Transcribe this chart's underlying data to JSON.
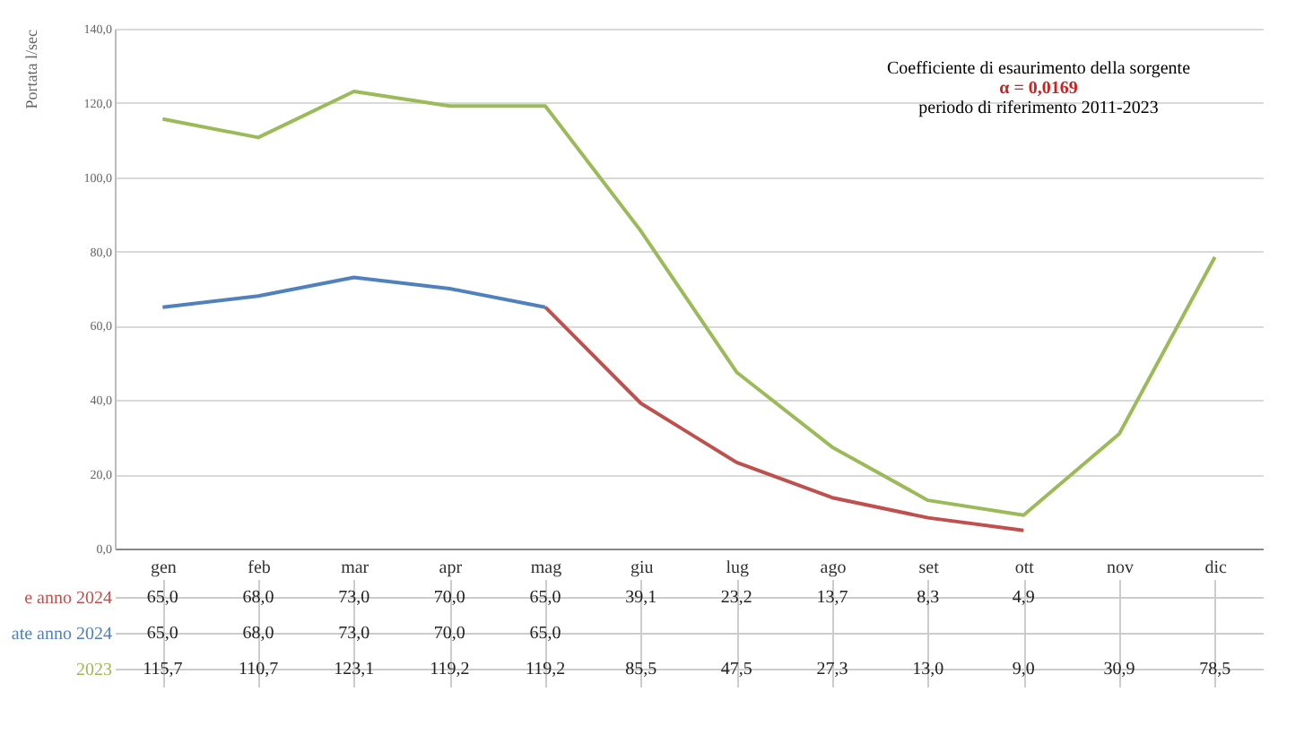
{
  "chart_data": {
    "type": "line",
    "ylabel": "Portata l/sec",
    "categories": [
      "gen",
      "feb",
      "mar",
      "apr",
      "mag",
      "giu",
      "lug",
      "ago",
      "set",
      "ott",
      "nov",
      "dic"
    ],
    "series": [
      {
        "name": "e anno 2024",
        "color": "#c0504d",
        "values": [
          null,
          null,
          null,
          null,
          65.0,
          39.1,
          23.2,
          13.7,
          8.3,
          4.9,
          null,
          null
        ],
        "value_labels": [
          "65,0",
          "68,0",
          "73,0",
          "70,0",
          "65,0",
          "39,1",
          "23,2",
          "13,7",
          "8,3",
          "4,9",
          null,
          null
        ]
      },
      {
        "name": "ate anno 2024",
        "color": "#4f81bd",
        "values": [
          65.0,
          68.0,
          73.0,
          70.0,
          65.0,
          null,
          null,
          null,
          null,
          null,
          null,
          null
        ],
        "value_labels": [
          "65,0",
          "68,0",
          "73,0",
          "70,0",
          "65,0",
          null,
          null,
          null,
          null,
          null,
          null,
          null
        ]
      },
      {
        "name": "2023",
        "color": "#9bbb59",
        "values": [
          115.7,
          110.7,
          123.1,
          119.2,
          119.2,
          85.5,
          47.5,
          27.3,
          13.0,
          9.0,
          30.9,
          78.5
        ],
        "value_labels": [
          "115,7",
          "110,7",
          "123,1",
          "119,2",
          "119,2",
          "85,5",
          "47,5",
          "27,3",
          "13,0",
          "9,0",
          "30,9",
          "78,5"
        ]
      }
    ],
    "ylim": [
      0,
      140
    ],
    "yticks": [
      {
        "value": 0,
        "label": "0,0"
      },
      {
        "value": 20,
        "label": "20,0"
      },
      {
        "value": 40,
        "label": "40,0"
      },
      {
        "value": 60,
        "label": "60,0"
      },
      {
        "value": 80,
        "label": "80,0"
      },
      {
        "value": 100,
        "label": "100,0"
      },
      {
        "value": 120,
        "label": "120,0"
      },
      {
        "value": 140,
        "label": "140,0"
      }
    ],
    "grid": "y",
    "annotations": [
      "Coefficiente di esaurimento della sorgente",
      "α = 0,0169",
      "periodo di riferimento 2011-2023"
    ]
  }
}
